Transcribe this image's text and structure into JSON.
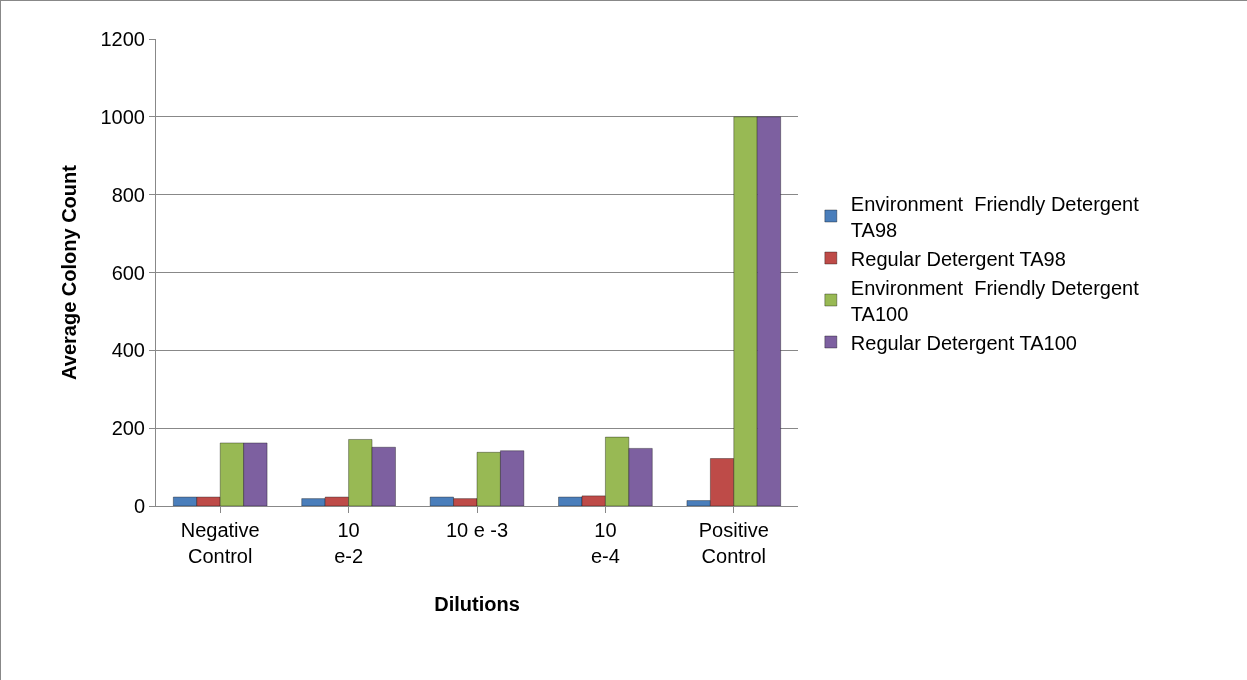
{
  "chart_data": {
    "type": "bar",
    "xlabel": "Dilutions",
    "ylabel": "Average Colony Count",
    "categories": [
      "Negative Control",
      "10 e-2",
      "10 e -3",
      "10 e-4",
      "Positive Control"
    ],
    "series": [
      {
        "name": "Environment  Friendly Detergent TA98",
        "color": "#4a7ebb",
        "values": [
          23,
          19,
          23,
          23,
          14
        ]
      },
      {
        "name": "Regular Detergent TA98",
        "color": "#be4b48",
        "values": [
          23,
          23,
          19,
          26,
          122
        ]
      },
      {
        "name": "Environment  Friendly Detergent TA100",
        "color": "#98b954",
        "values": [
          162,
          171,
          138,
          177,
          1000
        ]
      },
      {
        "name": "Regular Detergent TA100",
        "color": "#7d60a0",
        "values": [
          162,
          151,
          142,
          148,
          1000
        ]
      }
    ],
    "ylim": [
      0,
      1200
    ],
    "yticks": [
      0,
      200,
      400,
      600,
      800,
      1000,
      1200
    ],
    "grid": "y",
    "legend": "right"
  }
}
